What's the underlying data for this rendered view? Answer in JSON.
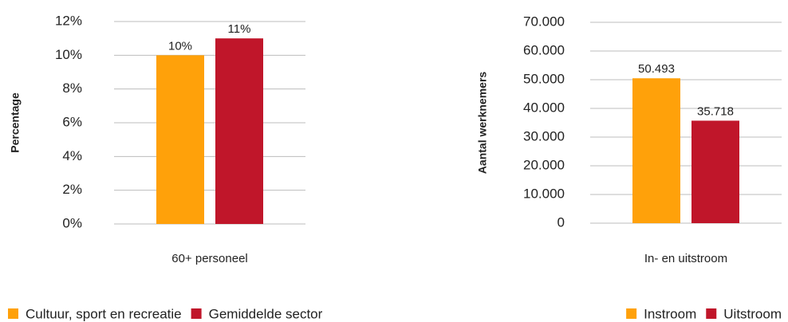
{
  "chart_data": [
    {
      "type": "bar",
      "ylabel": "Percentage",
      "categories": [
        "60+ personeel"
      ],
      "series": [
        {
          "name": "Cultuur, sport en recreatie",
          "color": "#ffa10a",
          "values": [
            10
          ],
          "value_labels": [
            "10%"
          ]
        },
        {
          "name": "Gemiddelde sector",
          "color": "#c0162a",
          "values": [
            11
          ],
          "value_labels": [
            "11%"
          ]
        }
      ],
      "ylim": [
        0,
        12
      ],
      "yticks": [
        {
          "value": 0,
          "label": "0%"
        },
        {
          "value": 2,
          "label": "2%"
        },
        {
          "value": 4,
          "label": "4%"
        },
        {
          "value": 6,
          "label": "6%"
        },
        {
          "value": 8,
          "label": "8%"
        },
        {
          "value": 10,
          "label": "10%"
        },
        {
          "value": 12,
          "label": "12%"
        }
      ],
      "grid": true,
      "legend": "bottom-left"
    },
    {
      "type": "bar",
      "ylabel": "Aantal werknemers",
      "categories": [
        "In- en uitstroom"
      ],
      "series": [
        {
          "name": "Instroom",
          "color": "#ffa10a",
          "values": [
            50493
          ],
          "value_labels": [
            "50.493"
          ]
        },
        {
          "name": "Uitstroom",
          "color": "#c0162a",
          "values": [
            35718
          ],
          "value_labels": [
            "35.718"
          ]
        }
      ],
      "ylim": [
        0,
        70000
      ],
      "yticks": [
        0,
        {
          "value": 10000,
          "label": "10.000"
        },
        {
          "value": 20000,
          "label": "20.000"
        },
        {
          "value": 30000,
          "label": "30.000"
        },
        {
          "value": 40000,
          "label": "40.000"
        },
        {
          "value": 50000,
          "label": "50.000"
        },
        {
          "value": 60000,
          "label": "60.000"
        },
        {
          "value": 70000,
          "label": "70.000"
        }
      ],
      "grid": true,
      "legend": "bottom-right"
    }
  ]
}
